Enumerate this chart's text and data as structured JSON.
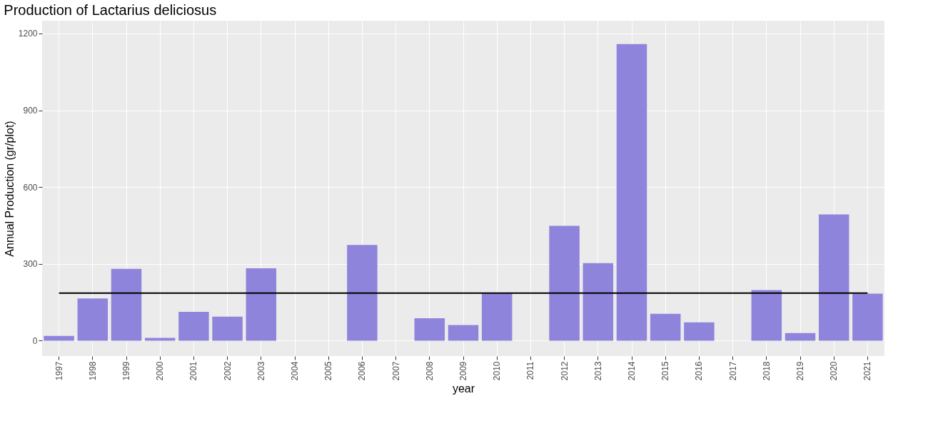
{
  "chart_data": {
    "type": "bar",
    "title": "Production of Lactarius deliciosus",
    "xlabel": "year",
    "ylabel": "Annual Production (gr/plot)",
    "categories": [
      "1997",
      "1998",
      "1999",
      "2000",
      "2001",
      "2002",
      "2003",
      "2004",
      "2005",
      "2006",
      "2007",
      "2008",
      "2009",
      "2010",
      "2011",
      "2012",
      "2013",
      "2014",
      "2015",
      "2016",
      "2017",
      "2018",
      "2019",
      "2020",
      "2021"
    ],
    "values": [
      19,
      165,
      281,
      11,
      113,
      94,
      283,
      null,
      null,
      374,
      null,
      88,
      61,
      187,
      null,
      449,
      303,
      1159,
      105,
      72,
      null,
      198,
      30,
      493,
      184
    ],
    "color": "#8f84db",
    "ylim": [
      -60,
      1250
    ],
    "yticks": [
      0,
      300,
      600,
      900,
      1200
    ],
    "grid": true,
    "ref_lines": [
      {
        "axis": "y",
        "value": 186,
        "color": "#000000",
        "line_style": "solid"
      }
    ]
  }
}
